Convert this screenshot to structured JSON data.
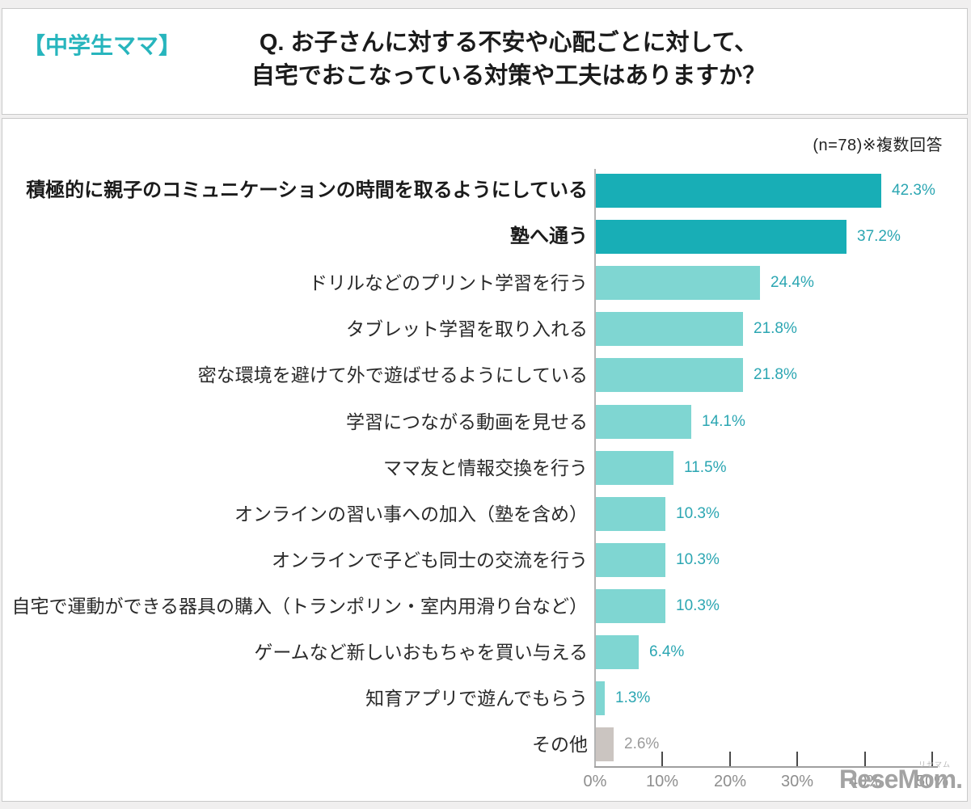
{
  "header": {
    "tag": "【中学生ママ】",
    "title_line1": "Q. お子さんに対する不安や心配ごとに対して、",
    "title_line2": "自宅でおこなっている対策や工夫はありますか？"
  },
  "chart": {
    "note": "(n=78)※複数回答"
  },
  "chart_data": {
    "type": "bar",
    "orientation": "horizontal",
    "title": "Q. お子さんに対する不安や心配ごとに対して、自宅でおこなっている対策や工夫はありますか？",
    "sample_note": "(n=78)※複数回答",
    "categories": [
      "積極的に親子のコミュニケーションの時間を取るようにしている",
      "塾へ通う",
      "ドリルなどのプリント学習を行う",
      "タブレット学習を取り入れる",
      "密な環境を避けて外で遊ばせるようにしている",
      "学習につながる動画を見せる",
      "ママ友と情報交換を行う",
      "オンラインの習い事への加入（塾を含め）",
      "オンラインで子ども同士の交流を行う",
      "自宅で運動ができる器具の購入（トランポリン・室内用滑り台など）",
      "ゲームなど新しいおもちゃを買い与える",
      "知育アプリで遊んでもらう",
      "その他"
    ],
    "values": [
      42.3,
      37.2,
      24.4,
      21.8,
      21.8,
      14.1,
      11.5,
      10.3,
      10.3,
      10.3,
      6.4,
      1.3,
      2.6
    ],
    "value_labels": [
      "42.3%",
      "37.2%",
      "24.4%",
      "21.8%",
      "21.8%",
      "14.1%",
      "11.5%",
      "10.3%",
      "10.3%",
      "10.3%",
      "6.4%",
      "1.3%",
      "2.6%"
    ],
    "bold_categories": [
      0,
      1
    ],
    "other_category_index": 12,
    "xlim": [
      0,
      50
    ],
    "x_tick_values": [
      0,
      10,
      20,
      30,
      40,
      50
    ],
    "x_ticks": [
      "0%",
      "10%",
      "20%",
      "30%",
      "40%",
      "50%"
    ],
    "grid": false,
    "legend": false,
    "colors": {
      "emphasis_bar": "#18aeb6",
      "normal_bar": "#7fd6d2",
      "other_bar": "#cbc5c1",
      "value_text": "#2ba6b2",
      "other_value_text": "#9b9b9b",
      "accent": "#27b5bd"
    }
  },
  "watermark": {
    "text": "ReseMom.",
    "ruby": "リセマム"
  }
}
